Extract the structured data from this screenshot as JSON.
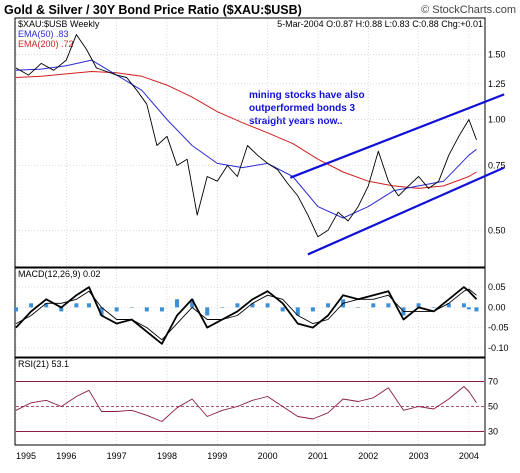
{
  "header": {
    "title": "Gold & Silver / 30Y Bond Price Ratio ($XAU:$USB)",
    "copyright": "© StockCharts.com",
    "symbol": "$XAU:$USB Weekly",
    "ohlc": "5-Mar-2004  O:0.87  H:0.88  L:0.83  C:0.88  Chg:+0.01",
    "ema50_label": "EMA(50) .83",
    "ema200_label": "EMA(200) .72"
  },
  "colors": {
    "price": "#000000",
    "ema50": "#2b2bd6",
    "ema200": "#d11f1f",
    "trend": "#1010d8",
    "annotation": "#1010d8",
    "histogram": "#3b8fd6",
    "rsi_band": "#8b1d3d",
    "grid": "#c8c8c8"
  },
  "chart_data": [
    {
      "panel": "price",
      "type": "line",
      "scale": "log",
      "ylim": [
        0.4,
        1.75
      ],
      "y_ticks": [
        "1.50",
        "1.25",
        "1.00",
        "0.75",
        "0.50"
      ],
      "y_tick_values": [
        1.5,
        1.25,
        1.0,
        0.75,
        0.5
      ],
      "x_ticks": [
        "1995",
        "1996",
        "1997",
        "1998",
        "1999",
        "2000",
        "2001",
        "2002",
        "2003",
        "2004"
      ],
      "xlim": [
        1995.0,
        2004.3
      ],
      "grid": true,
      "annotation": [
        "mining stocks have also",
        "outperformed bonds 3",
        "straight years now.."
      ],
      "series": [
        {
          "name": "$XAU:$USB Weekly",
          "x": [
            1995.0,
            1995.25,
            1995.5,
            1995.75,
            1996.0,
            1996.2,
            1996.4,
            1996.6,
            1996.8,
            1997.0,
            1997.2,
            1997.4,
            1997.6,
            1997.8,
            1998.0,
            1998.2,
            1998.4,
            1998.6,
            1998.8,
            1999.0,
            1999.2,
            1999.4,
            1999.6,
            1999.8,
            2000.0,
            2000.2,
            2000.4,
            2000.6,
            2000.8,
            2001.0,
            2001.2,
            2001.4,
            2001.6,
            2001.8,
            2002.0,
            2002.2,
            2002.4,
            2002.6,
            2002.8,
            2003.0,
            2003.2,
            2003.4,
            2003.6,
            2003.8,
            2004.0,
            2004.15
          ],
          "values": [
            1.38,
            1.32,
            1.42,
            1.36,
            1.45,
            1.7,
            1.55,
            1.38,
            1.35,
            1.32,
            1.3,
            1.2,
            1.1,
            0.85,
            0.9,
            0.75,
            0.78,
            0.55,
            0.7,
            0.68,
            0.75,
            0.7,
            0.85,
            0.8,
            0.76,
            0.73,
            0.67,
            0.62,
            0.55,
            0.48,
            0.5,
            0.56,
            0.53,
            0.58,
            0.66,
            0.82,
            0.68,
            0.62,
            0.66,
            0.7,
            0.65,
            0.68,
            0.8,
            0.9,
            1.0,
            0.88
          ]
        },
        {
          "name": "EMA(50)",
          "x": [
            1995.0,
            1995.5,
            1996.0,
            1996.5,
            1997.0,
            1997.5,
            1998.0,
            1998.5,
            1999.0,
            1999.5,
            2000.0,
            2000.5,
            2001.0,
            2001.5,
            2002.0,
            2002.5,
            2003.0,
            2003.5,
            2004.0,
            2004.15
          ],
          "values": [
            1.36,
            1.37,
            1.4,
            1.45,
            1.32,
            1.2,
            1.0,
            0.85,
            0.76,
            0.74,
            0.76,
            0.7,
            0.58,
            0.54,
            0.58,
            0.64,
            0.66,
            0.68,
            0.8,
            0.83
          ]
        },
        {
          "name": "EMA(200)",
          "x": [
            1995.0,
            1995.5,
            1996.0,
            1996.5,
            1997.0,
            1997.5,
            1998.0,
            1998.5,
            1999.0,
            1999.5,
            2000.0,
            2000.5,
            2001.0,
            2001.5,
            2002.0,
            2002.5,
            2003.0,
            2003.5,
            2004.0,
            2004.15
          ],
          "values": [
            1.3,
            1.31,
            1.33,
            1.35,
            1.34,
            1.31,
            1.24,
            1.15,
            1.05,
            0.98,
            0.92,
            0.86,
            0.78,
            0.72,
            0.68,
            0.66,
            0.65,
            0.66,
            0.7,
            0.72
          ]
        }
      ],
      "trend_lines": [
        {
          "x": [
            2000.45,
            2004.7
          ],
          "values": [
            0.695,
            1.17
          ]
        },
        {
          "x": [
            2000.8,
            2004.7
          ],
          "values": [
            0.43,
            0.74
          ]
        }
      ]
    },
    {
      "panel": "macd",
      "type": "line",
      "label": "MACD(12,26,9) 0.02",
      "ylim": [
        -0.12,
        0.07
      ],
      "y_ticks": [
        "0.05",
        "0.00",
        "-0.05",
        "-0.10"
      ],
      "y_tick_values": [
        0.05,
        0.0,
        -0.05,
        -0.1
      ],
      "x": [
        1995.0,
        1995.3,
        1995.6,
        1995.9,
        1996.2,
        1996.45,
        1996.7,
        1997.0,
        1997.3,
        1997.6,
        1997.9,
        1998.2,
        1998.5,
        1998.8,
        1999.1,
        1999.4,
        1999.7,
        2000.0,
        2000.3,
        2000.6,
        2000.9,
        2001.2,
        2001.5,
        2001.8,
        2002.1,
        2002.4,
        2002.7,
        2003.0,
        2003.3,
        2003.6,
        2003.9,
        2004.0,
        2004.15
      ],
      "series": [
        {
          "name": "MACD",
          "values": [
            -0.05,
            -0.01,
            0.02,
            0.0,
            0.03,
            0.05,
            -0.02,
            -0.04,
            -0.03,
            -0.06,
            -0.09,
            -0.02,
            0.02,
            -0.05,
            -0.03,
            -0.01,
            0.02,
            0.04,
            0.01,
            -0.04,
            -0.05,
            -0.02,
            0.03,
            0.02,
            0.03,
            0.04,
            -0.03,
            0.0,
            -0.01,
            0.02,
            0.05,
            0.04,
            0.02
          ]
        },
        {
          "name": "Signal",
          "values": [
            -0.04,
            -0.02,
            0.01,
            0.01,
            0.02,
            0.04,
            0.0,
            -0.03,
            -0.03,
            -0.05,
            -0.08,
            -0.04,
            0.0,
            -0.03,
            -0.03,
            -0.02,
            0.01,
            0.03,
            0.02,
            -0.02,
            -0.04,
            -0.03,
            0.01,
            0.02,
            0.02,
            0.03,
            -0.01,
            -0.01,
            -0.01,
            0.01,
            0.04,
            0.045,
            0.03
          ]
        }
      ]
    },
    {
      "panel": "rsi",
      "type": "line",
      "label": "RSI(21) 53.1",
      "ylim": [
        20,
        80
      ],
      "y_ticks": [
        "70",
        "50",
        "30"
      ],
      "y_tick_values": [
        70,
        50,
        30
      ],
      "x": [
        1995.0,
        1995.3,
        1995.6,
        1995.9,
        1996.2,
        1996.45,
        1996.7,
        1997.0,
        1997.3,
        1997.6,
        1997.9,
        1998.2,
        1998.5,
        1998.8,
        1999.1,
        1999.4,
        1999.7,
        2000.0,
        2000.3,
        2000.6,
        2000.9,
        2001.2,
        2001.5,
        2001.8,
        2002.1,
        2002.4,
        2002.7,
        2003.0,
        2003.3,
        2003.6,
        2003.9,
        2004.0,
        2004.15
      ],
      "values": [
        47,
        53,
        55,
        50,
        58,
        63,
        46,
        46,
        47,
        43,
        38,
        49,
        56,
        42,
        47,
        50,
        55,
        58,
        50,
        42,
        40,
        45,
        56,
        54,
        57,
        65,
        47,
        50,
        48,
        56,
        66,
        62,
        53
      ]
    }
  ]
}
